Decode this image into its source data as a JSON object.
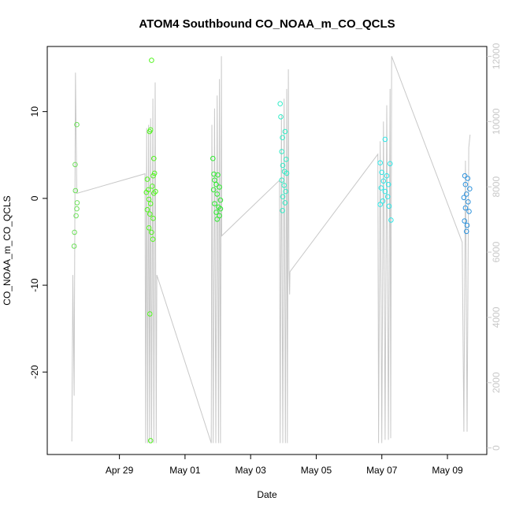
{
  "chart_data": {
    "type": "scatter",
    "title": "ATOM4 Southbound CO_NOAA_m_CO_QCLS",
    "xlabel": "Date",
    "ylabel": "CO_NOAA_m_CO_QCLS",
    "x_ticks": [
      {
        "day": 29,
        "label": "Apr 29"
      },
      {
        "day": 31,
        "label": "May 01"
      },
      {
        "day": 33,
        "label": "May 03"
      },
      {
        "day": 35,
        "label": "May 05"
      },
      {
        "day": 37,
        "label": "May 07"
      },
      {
        "day": 39,
        "label": "May 09"
      }
    ],
    "xlim_day_of_april": [
      26.8,
      40.2
    ],
    "ylim": [
      -29.5,
      17.5
    ],
    "y_ticks": [
      -20,
      -10,
      0,
      10
    ],
    "y2lim": [
      -200,
      12300
    ],
    "y2_ticks": [
      0,
      2000,
      4000,
      6000,
      8000,
      10000,
      12000
    ],
    "altitude_series": {
      "name": "Altitude",
      "color": "#c8c8c8",
      "points": [
        [
          27.55,
          200
        ],
        [
          27.58,
          5300
        ],
        [
          27.62,
          1600
        ],
        [
          27.66,
          11500
        ],
        [
          27.7,
          7800
        ],
        [
          29.78,
          8400
        ],
        [
          29.8,
          150
        ],
        [
          29.83,
          9800
        ],
        [
          29.86,
          150
        ],
        [
          29.89,
          9900
        ],
        [
          29.92,
          150
        ],
        [
          29.95,
          10100
        ],
        [
          29.98,
          150
        ],
        [
          30.02,
          10700
        ],
        [
          30.05,
          150
        ],
        [
          30.09,
          11200
        ],
        [
          30.12,
          150
        ],
        [
          30.14,
          5300
        ],
        [
          31.8,
          150
        ],
        [
          31.82,
          9900
        ],
        [
          31.86,
          150
        ],
        [
          31.9,
          10400
        ],
        [
          31.94,
          150
        ],
        [
          31.98,
          10800
        ],
        [
          32.02,
          150
        ],
        [
          32.05,
          11300
        ],
        [
          32.08,
          150
        ],
        [
          32.11,
          12000
        ],
        [
          32.12,
          6500
        ],
        [
          33.88,
          8200
        ],
        [
          33.9,
          150
        ],
        [
          33.94,
          10200
        ],
        [
          33.98,
          150
        ],
        [
          34.02,
          10700
        ],
        [
          34.06,
          150
        ],
        [
          34.1,
          11000
        ],
        [
          34.12,
          150
        ],
        [
          34.15,
          11600
        ],
        [
          34.17,
          5500
        ],
        [
          34.19,
          4700
        ],
        [
          34.2,
          5400
        ],
        [
          36.88,
          9000
        ],
        [
          36.9,
          150
        ],
        [
          36.95,
          9400
        ],
        [
          37.0,
          150
        ],
        [
          37.05,
          10000
        ],
        [
          37.1,
          250
        ],
        [
          37.15,
          10500
        ],
        [
          37.2,
          250
        ],
        [
          37.25,
          11000
        ],
        [
          37.27,
          300
        ],
        [
          37.3,
          12000
        ],
        [
          39.45,
          6300
        ],
        [
          39.5,
          500
        ],
        [
          39.55,
          8800
        ],
        [
          39.6,
          500
        ],
        [
          39.65,
          9200
        ],
        [
          39.69,
          9600
        ]
      ]
    },
    "series": [
      {
        "name": "",
        "color": "#6de05a",
        "points": [
          [
            27.7,
            8.5
          ],
          [
            27.65,
            3.9
          ],
          [
            27.66,
            0.9
          ],
          [
            27.71,
            -0.5
          ],
          [
            27.7,
            -1.2
          ],
          [
            27.68,
            -2.0
          ],
          [
            27.63,
            -3.9
          ],
          [
            27.62,
            -5.5
          ]
        ]
      },
      {
        "name": "",
        "color": "#52f51f",
        "points": [
          [
            29.98,
            15.9
          ],
          [
            29.92,
            7.7
          ],
          [
            29.95,
            7.9
          ],
          [
            30.05,
            4.6
          ],
          [
            29.85,
            2.2
          ],
          [
            30.03,
            2.6
          ],
          [
            30.07,
            2.9
          ],
          [
            29.88,
            1.0
          ],
          [
            29.82,
            0.7
          ],
          [
            30.0,
            1.4
          ],
          [
            30.05,
            0.6
          ],
          [
            30.1,
            0.8
          ],
          [
            29.9,
            -0.1
          ],
          [
            29.95,
            -0.6
          ],
          [
            29.85,
            -1.3
          ],
          [
            29.93,
            -1.8
          ],
          [
            30.03,
            -2.3
          ],
          [
            29.9,
            -3.4
          ],
          [
            29.98,
            -3.9
          ],
          [
            30.02,
            -4.7
          ],
          [
            29.93,
            -13.3
          ],
          [
            29.95,
            -27.9
          ]
        ]
      },
      {
        "name": "",
        "color": "#2eea30",
        "points": [
          [
            31.85,
            4.6
          ],
          [
            31.88,
            2.8
          ],
          [
            32.0,
            2.7
          ],
          [
            31.9,
            2.1
          ],
          [
            31.95,
            1.6
          ],
          [
            32.05,
            1.3
          ],
          [
            31.87,
            1.0
          ],
          [
            31.98,
            0.5
          ],
          [
            32.08,
            -0.2
          ],
          [
            31.9,
            -0.6
          ],
          [
            32.02,
            -1.0
          ],
          [
            32.08,
            -1.2
          ],
          [
            31.95,
            -1.6
          ],
          [
            32.05,
            -2.0
          ],
          [
            31.98,
            -2.4
          ]
        ]
      },
      {
        "name": "",
        "color": "#33ecc7",
        "points": [
          [
            33.9,
            10.9
          ],
          [
            33.92,
            9.4
          ],
          [
            34.05,
            7.7
          ],
          [
            33.97,
            7.0
          ],
          [
            33.95,
            5.4
          ],
          [
            34.08,
            4.5
          ],
          [
            33.98,
            3.8
          ],
          [
            34.03,
            3.1
          ],
          [
            34.1,
            2.9
          ],
          [
            33.95,
            2.1
          ],
          [
            34.02,
            1.5
          ],
          [
            34.07,
            0.8
          ],
          [
            33.98,
            0.2
          ],
          [
            34.05,
            -0.5
          ],
          [
            33.97,
            -1.4
          ]
        ]
      },
      {
        "name": "",
        "color": "#2de8e8",
        "points": [
          [
            37.1,
            6.8
          ],
          [
            36.95,
            4.1
          ],
          [
            37.25,
            4.0
          ],
          [
            37.0,
            3.0
          ],
          [
            37.15,
            2.6
          ],
          [
            37.05,
            2.0
          ],
          [
            37.2,
            1.6
          ],
          [
            36.98,
            1.2
          ],
          [
            37.1,
            0.8
          ],
          [
            37.18,
            0.2
          ],
          [
            37.03,
            -0.3
          ],
          [
            36.95,
            -0.7
          ],
          [
            37.22,
            -0.9
          ],
          [
            37.28,
            -2.5
          ]
        ]
      },
      {
        "name": "",
        "color": "#2f93dd",
        "points": [
          [
            39.53,
            2.6
          ],
          [
            39.62,
            2.3
          ],
          [
            39.55,
            1.6
          ],
          [
            39.68,
            1.1
          ],
          [
            39.58,
            0.5
          ],
          [
            39.5,
            0.1
          ],
          [
            39.63,
            -0.4
          ],
          [
            39.55,
            -1.1
          ],
          [
            39.66,
            -1.5
          ],
          [
            39.52,
            -2.6
          ],
          [
            39.6,
            -3.1
          ],
          [
            39.58,
            -3.8
          ]
        ]
      }
    ]
  }
}
